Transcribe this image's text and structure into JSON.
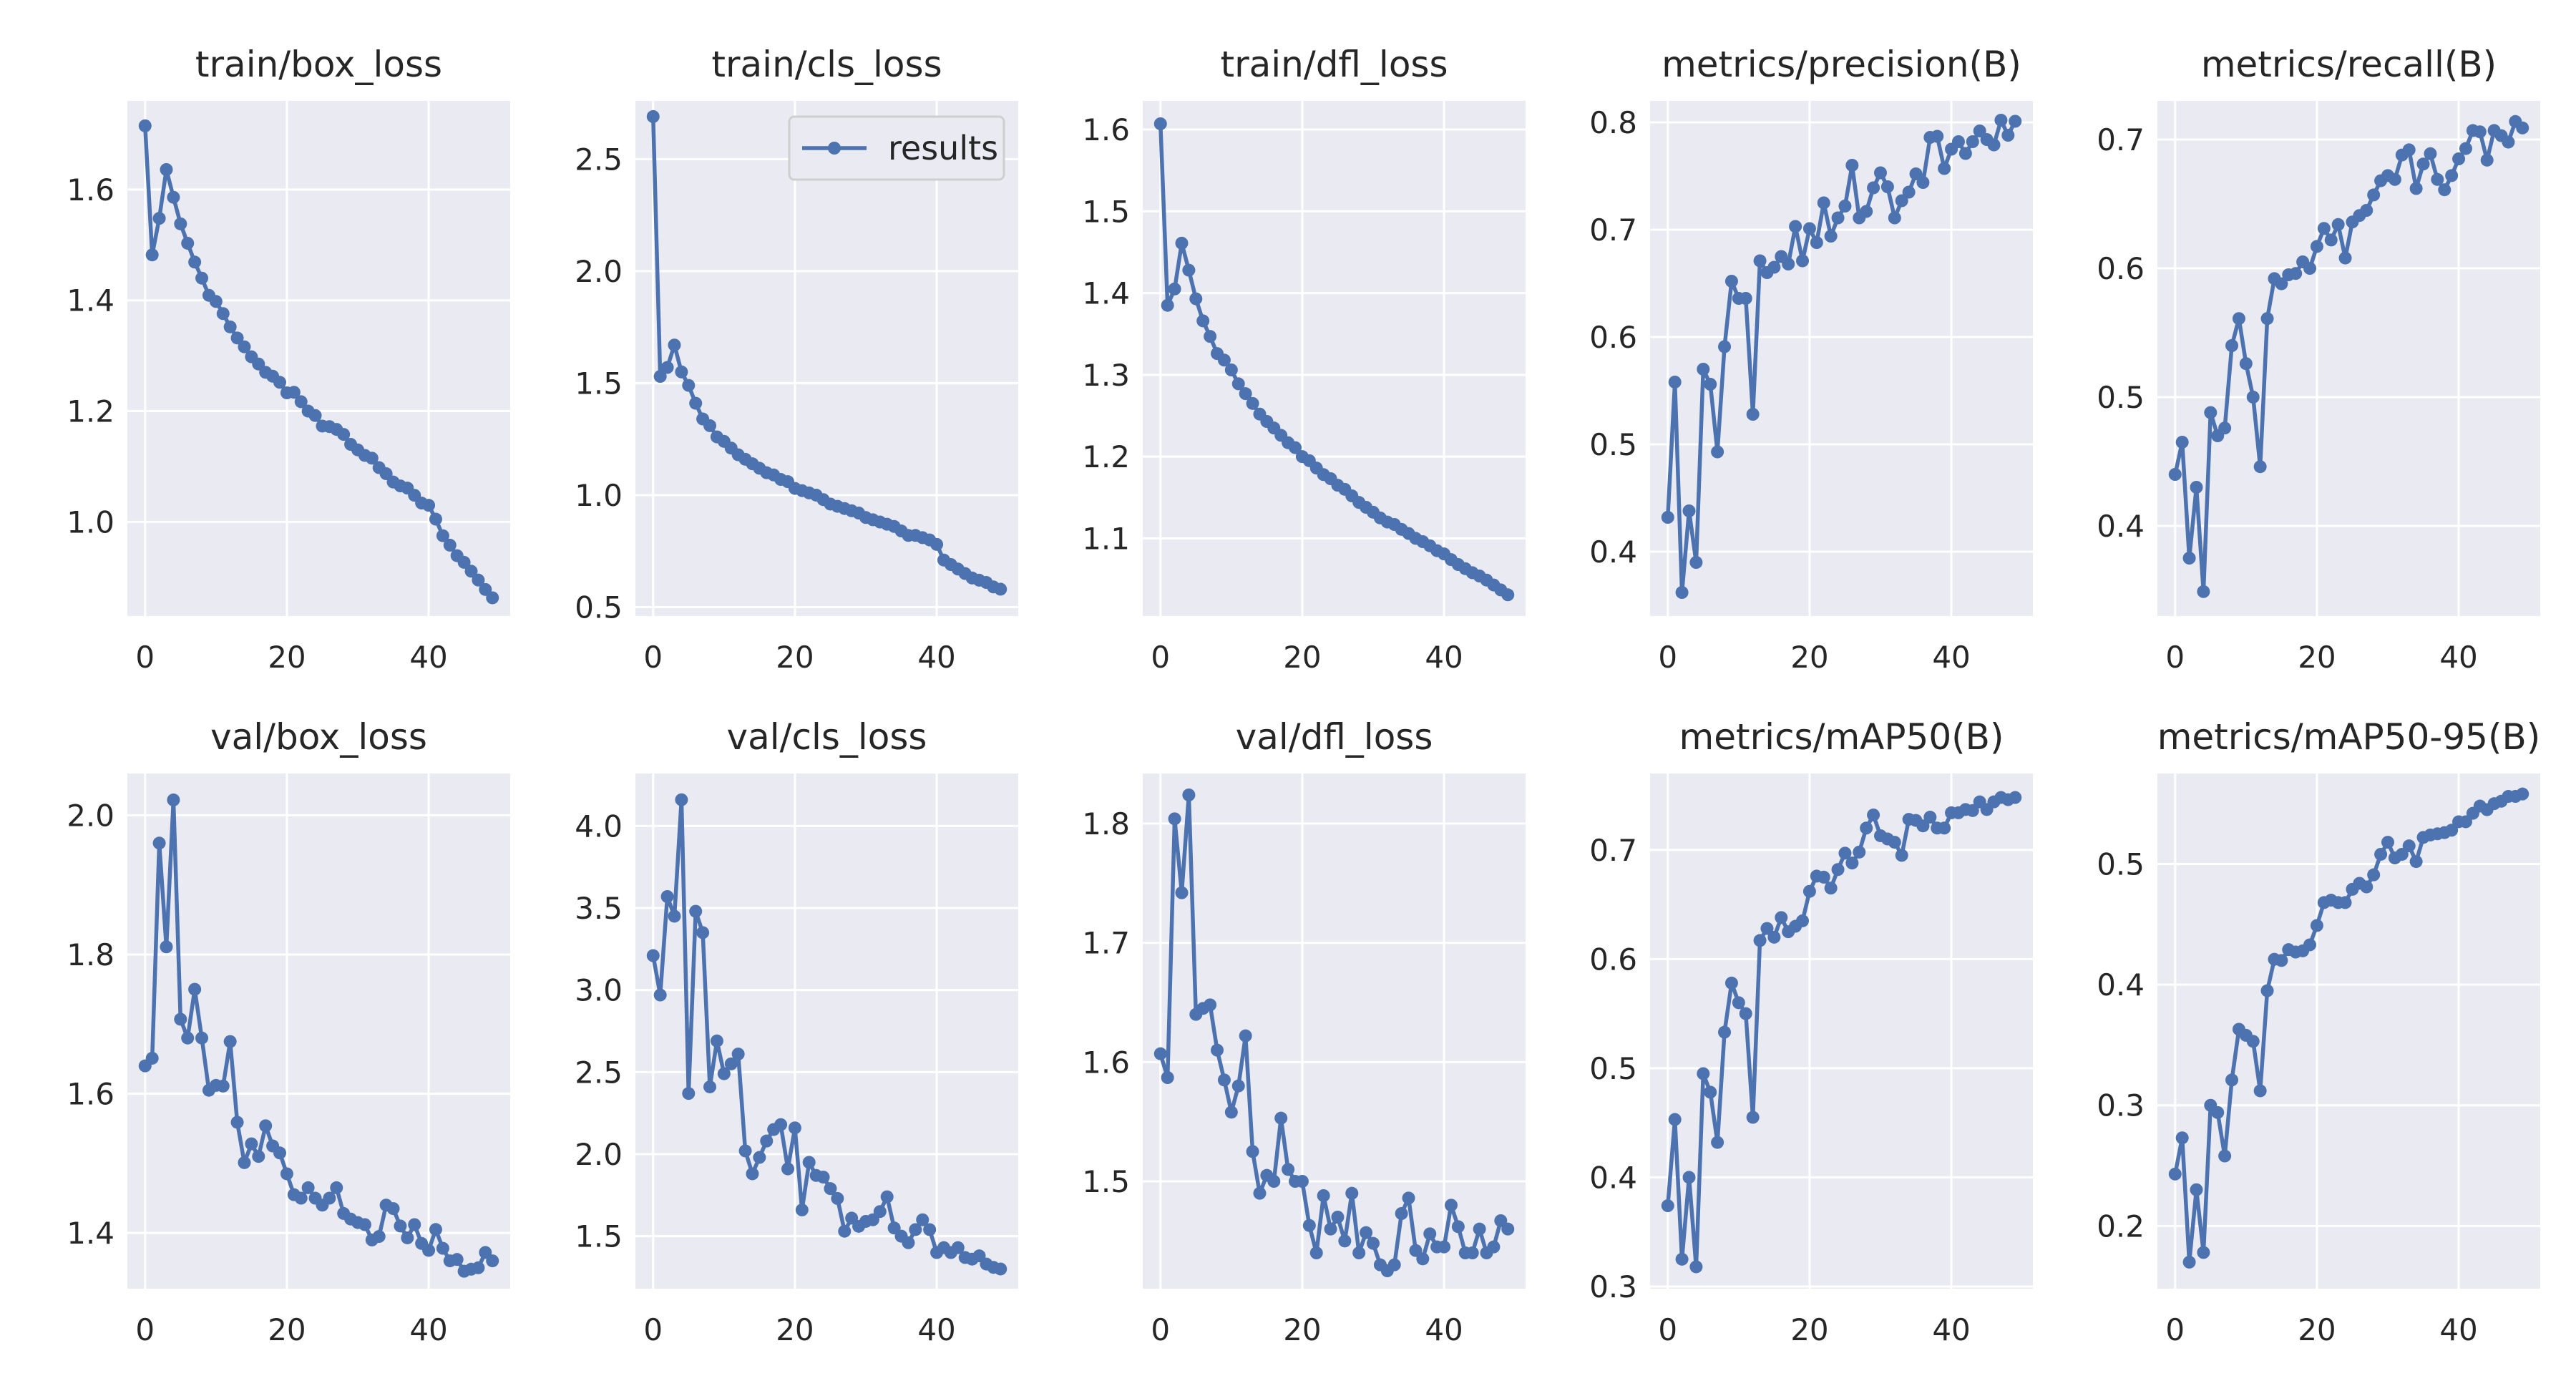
{
  "style": {
    "line_color": "#4C72B0",
    "plot_bg": "#EAEAF2",
    "grid_color": "#FFFFFF"
  },
  "legend": {
    "label": "results",
    "placement": "upper-right of train/cls_loss"
  },
  "x_ticks": [
    0,
    20,
    40
  ],
  "chart_data": [
    {
      "type": "line",
      "title": "train/box_loss",
      "xlim": [
        -2.5,
        51.5
      ],
      "ylim": [
        0.83,
        1.76
      ],
      "yticks": [
        1.0,
        1.2,
        1.4,
        1.6
      ],
      "series": [
        {
          "name": "results",
          "values": [
            1.715,
            1.482,
            1.548,
            1.636,
            1.586,
            1.538,
            1.503,
            1.469,
            1.44,
            1.409,
            1.398,
            1.376,
            1.352,
            1.332,
            1.316,
            1.298,
            1.285,
            1.27,
            1.263,
            1.252,
            1.233,
            1.234,
            1.217,
            1.2,
            1.192,
            1.173,
            1.172,
            1.167,
            1.158,
            1.14,
            1.13,
            1.12,
            1.115,
            1.098,
            1.087,
            1.072,
            1.065,
            1.061,
            1.048,
            1.034,
            1.03,
            1.005,
            0.975,
            0.958,
            0.939,
            0.927,
            0.911,
            0.895,
            0.878,
            0.863
          ]
        }
      ]
    },
    {
      "type": "line",
      "title": "train/cls_loss",
      "xlim": [
        -2.5,
        51.5
      ],
      "ylim": [
        0.46,
        2.76
      ],
      "yticks": [
        0.5,
        1.0,
        1.5,
        2.0,
        2.5
      ],
      "series": [
        {
          "name": "results",
          "values": [
            2.69,
            1.53,
            1.57,
            1.67,
            1.55,
            1.49,
            1.41,
            1.34,
            1.31,
            1.26,
            1.24,
            1.21,
            1.18,
            1.16,
            1.14,
            1.12,
            1.1,
            1.09,
            1.07,
            1.06,
            1.03,
            1.02,
            1.01,
            1.0,
            0.98,
            0.96,
            0.95,
            0.94,
            0.93,
            0.92,
            0.9,
            0.89,
            0.88,
            0.87,
            0.86,
            0.84,
            0.82,
            0.82,
            0.81,
            0.8,
            0.78,
            0.71,
            0.69,
            0.67,
            0.65,
            0.63,
            0.62,
            0.61,
            0.59,
            0.58
          ]
        }
      ]
    },
    {
      "type": "line",
      "title": "train/dfl_loss",
      "xlim": [
        -2.5,
        51.5
      ],
      "ylim": [
        1.005,
        1.635
      ],
      "yticks": [
        1.1,
        1.2,
        1.3,
        1.4,
        1.5,
        1.6
      ],
      "series": [
        {
          "name": "results",
          "values": [
            1.607,
            1.385,
            1.405,
            1.461,
            1.428,
            1.393,
            1.366,
            1.347,
            1.326,
            1.318,
            1.306,
            1.289,
            1.277,
            1.265,
            1.252,
            1.243,
            1.235,
            1.226,
            1.217,
            1.211,
            1.2,
            1.195,
            1.186,
            1.178,
            1.173,
            1.165,
            1.16,
            1.152,
            1.144,
            1.138,
            1.132,
            1.125,
            1.12,
            1.117,
            1.111,
            1.106,
            1.1,
            1.096,
            1.091,
            1.085,
            1.081,
            1.074,
            1.068,
            1.063,
            1.058,
            1.054,
            1.049,
            1.043,
            1.037,
            1.031
          ]
        }
      ]
    },
    {
      "type": "line",
      "title": "metrics/precision(B)",
      "xlim": [
        -2.5,
        51.5
      ],
      "ylim": [
        0.34,
        0.82
      ],
      "yticks": [
        0.4,
        0.5,
        0.6,
        0.7,
        0.8
      ],
      "series": [
        {
          "name": "results",
          "values": [
            0.432,
            0.558,
            0.362,
            0.438,
            0.39,
            0.57,
            0.556,
            0.493,
            0.591,
            0.652,
            0.636,
            0.636,
            0.528,
            0.671,
            0.66,
            0.665,
            0.675,
            0.668,
            0.703,
            0.671,
            0.701,
            0.688,
            0.725,
            0.694,
            0.711,
            0.722,
            0.76,
            0.711,
            0.717,
            0.739,
            0.753,
            0.74,
            0.711,
            0.727,
            0.735,
            0.752,
            0.744,
            0.786,
            0.787,
            0.757,
            0.775,
            0.782,
            0.771,
            0.782,
            0.792,
            0.784,
            0.779,
            0.802,
            0.788,
            0.801
          ]
        }
      ]
    },
    {
      "type": "line",
      "title": "metrics/recall(B)",
      "xlim": [
        -2.5,
        51.5
      ],
      "ylim": [
        0.33,
        0.73
      ],
      "yticks": [
        0.4,
        0.5,
        0.6,
        0.7
      ],
      "series": [
        {
          "name": "results",
          "values": [
            0.44,
            0.465,
            0.375,
            0.43,
            0.349,
            0.488,
            0.47,
            0.476,
            0.54,
            0.561,
            0.526,
            0.5,
            0.446,
            0.561,
            0.592,
            0.588,
            0.595,
            0.596,
            0.605,
            0.6,
            0.617,
            0.631,
            0.622,
            0.634,
            0.608,
            0.636,
            0.641,
            0.645,
            0.657,
            0.668,
            0.672,
            0.669,
            0.688,
            0.692,
            0.662,
            0.681,
            0.689,
            0.669,
            0.661,
            0.672,
            0.685,
            0.693,
            0.707,
            0.706,
            0.684,
            0.707,
            0.703,
            0.698,
            0.714,
            0.709
          ]
        }
      ]
    },
    {
      "type": "line",
      "title": "val/box_loss",
      "xlim": [
        -2.5,
        51.5
      ],
      "ylim": [
        1.32,
        2.06
      ],
      "yticks": [
        1.4,
        1.6,
        1.8,
        2.0
      ],
      "series": [
        {
          "name": "results",
          "values": [
            1.64,
            1.651,
            1.96,
            1.811,
            2.022,
            1.707,
            1.68,
            1.75,
            1.68,
            1.605,
            1.612,
            1.611,
            1.675,
            1.559,
            1.501,
            1.528,
            1.51,
            1.554,
            1.525,
            1.515,
            1.485,
            1.455,
            1.45,
            1.465,
            1.45,
            1.44,
            1.45,
            1.465,
            1.428,
            1.42,
            1.415,
            1.412,
            1.39,
            1.395,
            1.44,
            1.435,
            1.41,
            1.393,
            1.412,
            1.385,
            1.375,
            1.405,
            1.378,
            1.36,
            1.362,
            1.345,
            1.348,
            1.35,
            1.372,
            1.36
          ]
        }
      ]
    },
    {
      "type": "line",
      "title": "val/cls_loss",
      "xlim": [
        -2.5,
        51.5
      ],
      "ylim": [
        1.18,
        4.32
      ],
      "yticks": [
        1.5,
        2.0,
        2.5,
        3.0,
        3.5,
        4.0
      ],
      "series": [
        {
          "name": "results",
          "values": [
            3.21,
            2.97,
            3.57,
            3.45,
            4.16,
            2.37,
            3.48,
            3.35,
            2.41,
            2.69,
            2.49,
            2.55,
            2.61,
            2.02,
            1.88,
            1.98,
            2.08,
            2.15,
            2.18,
            1.91,
            2.16,
            1.66,
            1.95,
            1.87,
            1.86,
            1.79,
            1.73,
            1.53,
            1.61,
            1.56,
            1.59,
            1.6,
            1.65,
            1.74,
            1.55,
            1.5,
            1.46,
            1.54,
            1.6,
            1.54,
            1.4,
            1.43,
            1.4,
            1.43,
            1.37,
            1.36,
            1.38,
            1.33,
            1.31,
            1.3
          ]
        }
      ]
    },
    {
      "type": "line",
      "title": "val/dfl_loss",
      "xlim": [
        -2.5,
        51.5
      ],
      "ylim": [
        1.41,
        1.842
      ],
      "yticks": [
        1.5,
        1.6,
        1.7,
        1.8
      ],
      "series": [
        {
          "name": "results",
          "values": [
            1.607,
            1.587,
            1.804,
            1.742,
            1.824,
            1.64,
            1.645,
            1.648,
            1.61,
            1.585,
            1.558,
            1.58,
            1.622,
            1.525,
            1.49,
            1.505,
            1.5,
            1.553,
            1.51,
            1.5,
            1.5,
            1.463,
            1.44,
            1.488,
            1.46,
            1.47,
            1.45,
            1.49,
            1.44,
            1.457,
            1.448,
            1.43,
            1.425,
            1.43,
            1.473,
            1.486,
            1.442,
            1.435,
            1.456,
            1.445,
            1.445,
            1.48,
            1.462,
            1.44,
            1.44,
            1.46,
            1.44,
            1.445,
            1.467,
            1.46
          ]
        }
      ]
    },
    {
      "type": "line",
      "title": "metrics/mAP50(B)",
      "xlim": [
        -2.5,
        51.5
      ],
      "ylim": [
        0.298,
        0.77
      ],
      "yticks": [
        0.3,
        0.4,
        0.5,
        0.6,
        0.7
      ],
      "series": [
        {
          "name": "results",
          "values": [
            0.374,
            0.453,
            0.325,
            0.4,
            0.318,
            0.495,
            0.478,
            0.432,
            0.533,
            0.578,
            0.56,
            0.55,
            0.455,
            0.617,
            0.628,
            0.62,
            0.638,
            0.625,
            0.63,
            0.635,
            0.662,
            0.676,
            0.675,
            0.665,
            0.682,
            0.697,
            0.688,
            0.698,
            0.72,
            0.732,
            0.713,
            0.71,
            0.707,
            0.695,
            0.728,
            0.727,
            0.722,
            0.73,
            0.72,
            0.72,
            0.734,
            0.734,
            0.737,
            0.736,
            0.744,
            0.737,
            0.744,
            0.748,
            0.746,
            0.748
          ]
        }
      ]
    },
    {
      "type": "line",
      "title": "metrics/mAP50-95(B)",
      "xlim": [
        -2.5,
        51.5
      ],
      "ylim": [
        0.148,
        0.575
      ],
      "yticks": [
        0.2,
        0.3,
        0.4,
        0.5
      ],
      "series": [
        {
          "name": "results",
          "values": [
            0.243,
            0.273,
            0.17,
            0.23,
            0.178,
            0.3,
            0.294,
            0.258,
            0.321,
            0.363,
            0.358,
            0.353,
            0.312,
            0.395,
            0.421,
            0.42,
            0.429,
            0.427,
            0.428,
            0.433,
            0.449,
            0.468,
            0.47,
            0.468,
            0.468,
            0.479,
            0.484,
            0.481,
            0.491,
            0.508,
            0.518,
            0.505,
            0.508,
            0.515,
            0.502,
            0.522,
            0.524,
            0.525,
            0.526,
            0.528,
            0.535,
            0.535,
            0.542,
            0.548,
            0.545,
            0.55,
            0.552,
            0.556,
            0.556,
            0.558
          ]
        }
      ]
    }
  ]
}
